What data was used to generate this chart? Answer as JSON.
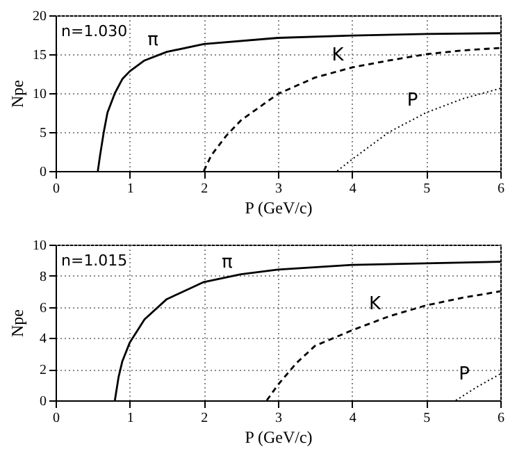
{
  "chart_data": [
    {
      "type": "line",
      "annotations": [
        "n=1.030"
      ],
      "xlabel": "P (GeV/c)",
      "ylabel": "Npe",
      "xlim": [
        0,
        6
      ],
      "xticks": [
        0,
        1,
        2,
        3,
        4,
        5,
        6
      ],
      "ylim": [
        0,
        20
      ],
      "yticks": [
        0,
        5,
        10,
        15,
        20
      ],
      "grid": true,
      "series": [
        {
          "name": "π",
          "color": "#000000",
          "line_style": "solid",
          "x": [
            0.57,
            0.6,
            0.65,
            0.7,
            0.8,
            0.9,
            1,
            1.2,
            1.5,
            2,
            3,
            4,
            5,
            6
          ],
          "values": [
            0,
            2,
            5,
            7.5,
            10,
            11.8,
            12.8,
            14.2,
            15.3,
            16.3,
            17.1,
            17.4,
            17.6,
            17.7
          ]
        },
        {
          "name": "K",
          "color": "#000000",
          "line_style": "dashed",
          "x": [
            2,
            2.1,
            2.3,
            2.5,
            3,
            3.5,
            4,
            4.5,
            5,
            5.5,
            6
          ],
          "values": [
            0,
            2,
            4.5,
            6.5,
            9.9,
            12,
            13.3,
            14.2,
            15,
            15.5,
            15.8
          ]
        },
        {
          "name": "P",
          "color": "#000000",
          "line_style": "dotted",
          "x": [
            3.8,
            4,
            4.5,
            5,
            5.5,
            6
          ],
          "values": [
            0,
            1.5,
            5,
            7.5,
            9.3,
            10.6
          ]
        }
      ]
    },
    {
      "type": "line",
      "annotations": [
        "n=1.015"
      ],
      "xlabel": "P (GeV/c)",
      "ylabel": "Npe",
      "xlim": [
        0,
        6
      ],
      "xticks": [
        0,
        1,
        2,
        3,
        4,
        5,
        6
      ],
      "ylim": [
        0,
        10
      ],
      "yticks": [
        0,
        2,
        4,
        6,
        8,
        10
      ],
      "grid": true,
      "series": [
        {
          "name": "π",
          "color": "#000000",
          "line_style": "solid",
          "x": [
            0.8,
            0.85,
            0.9,
            1,
            1.2,
            1.5,
            2,
            2.5,
            3,
            4,
            5,
            6
          ],
          "values": [
            0,
            1.5,
            2.5,
            3.7,
            5.2,
            6.5,
            7.6,
            8.1,
            8.4,
            8.7,
            8.8,
            8.9
          ]
        },
        {
          "name": "K",
          "color": "#000000",
          "line_style": "dashed",
          "x": [
            2.85,
            3,
            3.25,
            3.5,
            4,
            4.5,
            5,
            5.5,
            6
          ],
          "values": [
            0,
            1,
            2.4,
            3.5,
            4.5,
            5.4,
            6.1,
            6.6,
            7.0
          ]
        },
        {
          "name": "P",
          "color": "#000000",
          "line_style": "dotted",
          "x": [
            5.4,
            5.7,
            6
          ],
          "values": [
            0,
            0.9,
            1.7
          ]
        }
      ]
    }
  ]
}
